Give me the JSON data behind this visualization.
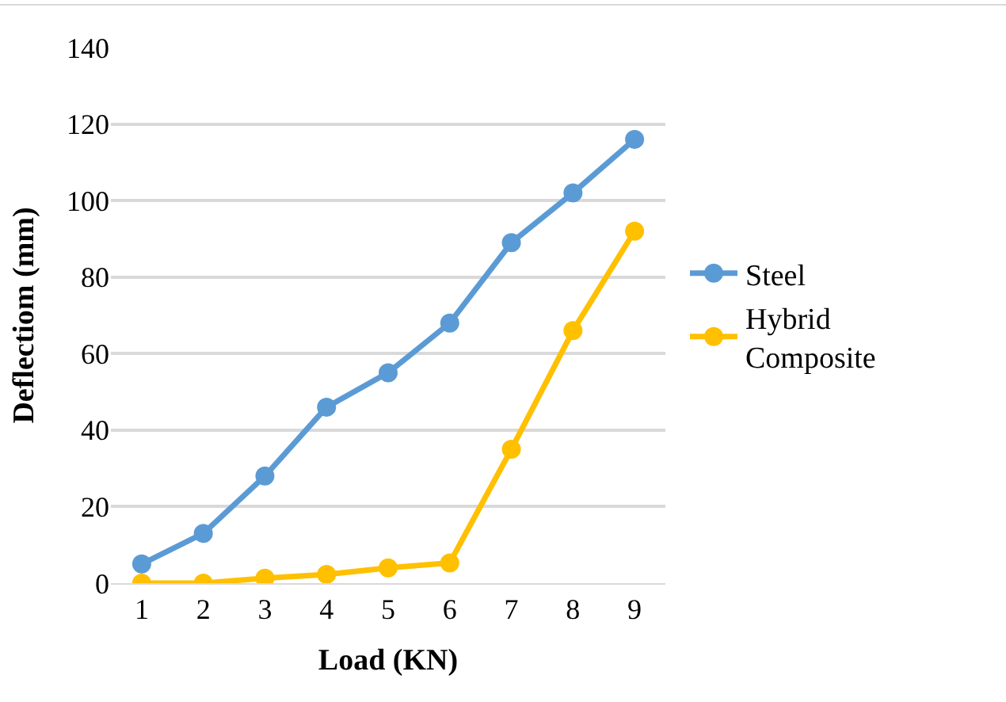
{
  "chart_data": {
    "type": "line",
    "xlabel": "Load (KN)",
    "ylabel": "Deflectiom (mm)",
    "categories": [
      "1",
      "2",
      "3",
      "4",
      "5",
      "6",
      "7",
      "8",
      "9"
    ],
    "series": [
      {
        "name": "Steel",
        "color": "#5b9bd5",
        "values": [
          5,
          13,
          28,
          46,
          55,
          68,
          89,
          102,
          116
        ]
      },
      {
        "name": "Hybrid Composite",
        "color": "#ffc000",
        "values": [
          0,
          0,
          1.3,
          2.3,
          4,
          5.3,
          35,
          66,
          92
        ]
      }
    ],
    "ylim": [
      0,
      140
    ],
    "yticks": [
      0,
      20,
      40,
      60,
      80,
      100,
      120,
      140
    ],
    "grid": "y",
    "legend": "right",
    "marker": "circle",
    "line_style": "solid"
  }
}
